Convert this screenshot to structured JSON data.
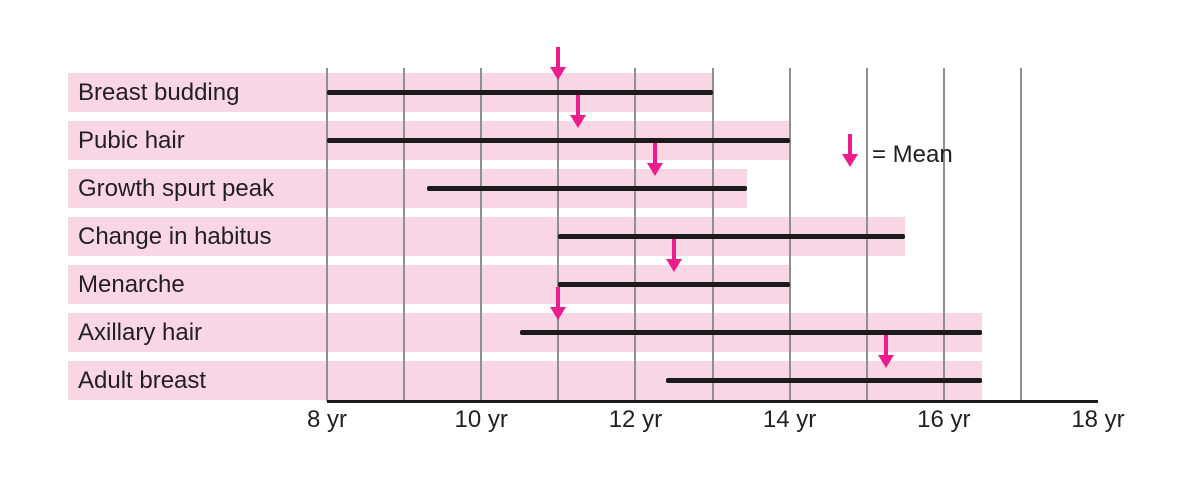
{
  "colors": {
    "band_pink": "#f8d6e4",
    "bar_black": "#1a1a1a",
    "arrow_magenta": "#ec1c8d",
    "gridline_gray": "#8f8f8f",
    "text": "#231f20"
  },
  "legend": {
    "label": "= Mean"
  },
  "chart_data": {
    "type": "range_bar",
    "title": "",
    "unit": "years",
    "x_axis": {
      "min": 8,
      "max": 18,
      "gridline_years": [
        8,
        9,
        10,
        11,
        12,
        13,
        14,
        15,
        16,
        17
      ],
      "ticks": [
        {
          "year": 8,
          "label": "8 yr"
        },
        {
          "year": 10,
          "label": "10 yr"
        },
        {
          "year": 12,
          "label": "12 yr"
        },
        {
          "year": 14,
          "label": "14 yr"
        },
        {
          "year": 16,
          "label": "16 yr"
        },
        {
          "year": 18,
          "label": "18 yr"
        }
      ]
    },
    "legend": "= Mean",
    "rows": [
      {
        "label": "Breast budding",
        "start": 8.0,
        "end": 13.0,
        "mean": 11.0
      },
      {
        "label": "Pubic hair",
        "start": 8.0,
        "end": 14.0,
        "mean": 11.25
      },
      {
        "label": "Growth spurt peak",
        "start": 9.3,
        "end": 13.45,
        "mean": 12.25
      },
      {
        "label": "Change in habitus",
        "start": 11.0,
        "end": 15.5,
        "mean": null
      },
      {
        "label": "Menarche",
        "start": 11.0,
        "end": 14.0,
        "mean": 12.5
      },
      {
        "label": "Axillary hair",
        "start": 10.5,
        "end": 16.5,
        "mean": 11.0
      },
      {
        "label": "Adult breast",
        "start": 12.4,
        "end": 16.5,
        "mean": 15.25
      }
    ]
  }
}
